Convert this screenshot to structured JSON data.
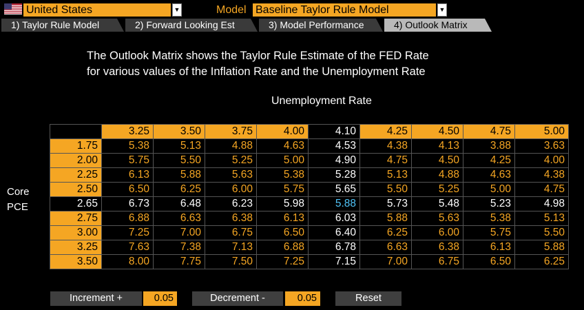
{
  "header": {
    "country": "United States",
    "model_label": "Model",
    "model": "Baseline Taylor Rule Model"
  },
  "tabs": [
    {
      "label": "1) Taylor Rule Model"
    },
    {
      "label": "2) Forward Looking Est"
    },
    {
      "label": "3) Model Performance"
    },
    {
      "label": "4) Outlook Matrix"
    }
  ],
  "description": {
    "line1": "The Outlook Matrix shows the Taylor Rule Estimate of the FED Rate",
    "line2": "for various values of the Inflation Rate and the Unemployment Rate"
  },
  "matrix": {
    "col_title": "Unemployment Rate",
    "row_title_1": "Core",
    "row_title_2": "PCE",
    "col_headers": [
      "3.25",
      "3.50",
      "3.75",
      "4.00",
      "4.10",
      "4.25",
      "4.50",
      "4.75",
      "5.00"
    ],
    "current_col": 4,
    "current_row": 4,
    "rows": [
      {
        "label": "1.75",
        "values": [
          "5.38",
          "5.13",
          "4.88",
          "4.63",
          "4.53",
          "4.38",
          "4.13",
          "3.88",
          "3.63"
        ]
      },
      {
        "label": "2.00",
        "values": [
          "5.75",
          "5.50",
          "5.25",
          "5.00",
          "4.90",
          "4.75",
          "4.50",
          "4.25",
          "4.00"
        ]
      },
      {
        "label": "2.25",
        "values": [
          "6.13",
          "5.88",
          "5.63",
          "5.38",
          "5.28",
          "5.13",
          "4.88",
          "4.63",
          "4.38"
        ]
      },
      {
        "label": "2.50",
        "values": [
          "6.50",
          "6.25",
          "6.00",
          "5.75",
          "5.65",
          "5.50",
          "5.25",
          "5.00",
          "4.75"
        ]
      },
      {
        "label": "2.65",
        "values": [
          "6.73",
          "6.48",
          "6.23",
          "5.98",
          "5.88",
          "5.73",
          "5.48",
          "5.23",
          "4.98"
        ]
      },
      {
        "label": "2.75",
        "values": [
          "6.88",
          "6.63",
          "6.38",
          "6.13",
          "6.03",
          "5.88",
          "5.63",
          "5.38",
          "5.13"
        ]
      },
      {
        "label": "3.00",
        "values": [
          "7.25",
          "7.00",
          "6.75",
          "6.50",
          "6.40",
          "6.25",
          "6.00",
          "5.75",
          "5.50"
        ]
      },
      {
        "label": "3.25",
        "values": [
          "7.63",
          "7.38",
          "7.13",
          "6.88",
          "6.78",
          "6.63",
          "6.38",
          "6.13",
          "5.88"
        ]
      },
      {
        "label": "3.50",
        "values": [
          "8.00",
          "7.75",
          "7.50",
          "7.25",
          "7.15",
          "7.00",
          "6.75",
          "6.50",
          "6.25"
        ]
      }
    ]
  },
  "controls": {
    "increment_label": "Increment +",
    "increment_value": "0.05",
    "decrement_label": "Decrement -",
    "decrement_value": "0.05",
    "reset_label": "Reset"
  },
  "colors": {
    "accent": "#f5a623",
    "baseline": "#4fc3f7",
    "tab_active": "#b9b9b9",
    "tab_inactive": "#3a3a3a"
  },
  "icons": {
    "flag": "us-flag-icon",
    "dropdown": "chevron-down-icon"
  }
}
